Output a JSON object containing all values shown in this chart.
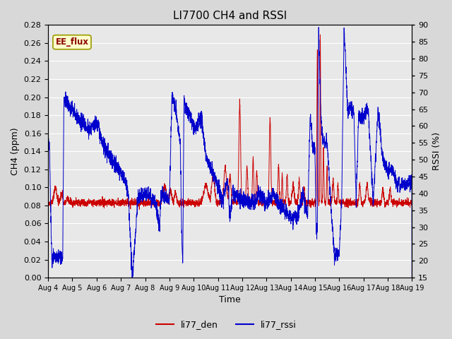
{
  "title": "LI7700 CH4 and RSSI",
  "xlabel": "Time",
  "ylabel_left": "CH4 (ppm)",
  "ylabel_right": "RSSI (%)",
  "ylim_left": [
    0.0,
    0.28
  ],
  "ylim_right": [
    15,
    90
  ],
  "yticks_left": [
    0.0,
    0.02,
    0.04,
    0.06,
    0.08,
    0.1,
    0.12,
    0.14,
    0.16,
    0.18,
    0.2,
    0.22,
    0.24,
    0.26,
    0.28
  ],
  "yticks_right": [
    15,
    20,
    25,
    30,
    35,
    40,
    45,
    50,
    55,
    60,
    65,
    70,
    75,
    80,
    85,
    90
  ],
  "xtick_labels": [
    "Aug 4",
    "Aug 5",
    "Aug 6",
    "Aug 7",
    "Aug 8",
    "Aug 9",
    "Aug 10",
    "Aug 11",
    "Aug 12",
    "Aug 13",
    "Aug 14",
    "Aug 15",
    "Aug 16",
    "Aug 17",
    "Aug 18",
    "Aug 19"
  ],
  "color_ch4": "#cc0000",
  "color_rssi": "#0000cc",
  "legend_labels": [
    "li77_den",
    "li77_rssi"
  ],
  "annotation_text": "EE_flux",
  "annotation_box_facecolor": "#ffffcc",
  "annotation_box_edgecolor": "#999900",
  "background_color": "#e8e8e8",
  "grid_color": "#ffffff",
  "title_fontsize": 11,
  "axis_label_fontsize": 9,
  "tick_fontsize": 8,
  "legend_fontsize": 9
}
